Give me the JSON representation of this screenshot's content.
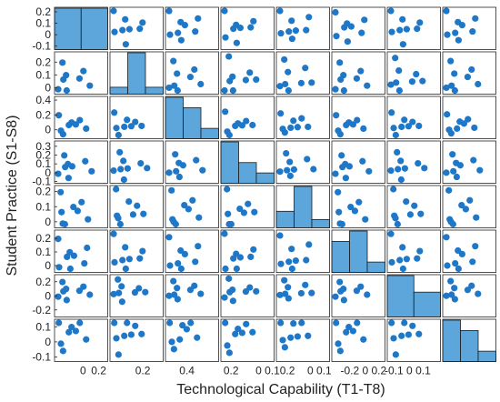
{
  "chart_data": {
    "type": "scatter-matrix",
    "xlabel": "Technological Capability (T1-T8)",
    "ylabel": "Student Practice (S1-S8)",
    "grid": false,
    "colors": {
      "marker": "#1f77c8",
      "bar_fill": "#5ca6dc",
      "bar_edge": "#1b1b1b",
      "frame": "#262626"
    },
    "size": 8,
    "x_range": [
      -0.1,
      0.25
    ],
    "x_ticks": [
      {
        "pos": 0.0,
        "label": "0"
      },
      {
        "pos": 0.1,
        "label": "0.2"
      },
      {
        "pos": 0.2,
        "label": "0.2"
      },
      {
        "pos": 0.3,
        "label": "0.4"
      },
      {
        "pos": 0.4,
        "label": "0.2"
      },
      {
        "pos": 0.5,
        "label": "0 0.10.2"
      },
      {
        "pos": 0.6,
        "label": "0 0.1"
      },
      {
        "pos": 0.7,
        "label": "-0.2 0 0.2"
      },
      {
        "pos": 0.8,
        "label": "-0.1 0 0.1"
      }
    ],
    "row_ticks": [
      {
        "labels": [
          "0.2",
          "0.1",
          "0",
          "-0.1"
        ],
        "values": [
          0.2,
          0.1,
          0.0,
          -0.1
        ],
        "range": [
          -0.13,
          0.24
        ]
      },
      {
        "labels": [
          "0.2",
          "0.1",
          "0"
        ],
        "values": [
          0.2,
          0.1,
          0.0
        ],
        "range": [
          -0.05,
          0.28
        ]
      },
      {
        "labels": [
          "0.4",
          "0.2",
          "0"
        ],
        "values": [
          0.4,
          0.2,
          0.0
        ],
        "range": [
          -0.12,
          0.45
        ]
      },
      {
        "labels": [
          "0.3",
          "0.2",
          "0.1",
          "0",
          "-0.1"
        ],
        "values": [
          0.3,
          0.2,
          0.1,
          0.0,
          -0.1
        ],
        "range": [
          -0.12,
          0.36
        ]
      },
      {
        "labels": [
          "0.2",
          "0.1",
          "0"
        ],
        "values": [
          0.2,
          0.1,
          0.0
        ],
        "range": [
          -0.04,
          0.24
        ]
      },
      {
        "labels": [
          "0.2",
          "0.1",
          "0"
        ],
        "values": [
          0.2,
          0.1,
          0.0
        ],
        "range": [
          -0.05,
          0.26
        ]
      },
      {
        "labels": [
          "0.2",
          "0",
          "-0.2"
        ],
        "values": [
          0.2,
          0.0,
          -0.2
        ],
        "range": [
          -0.3,
          0.3
        ]
      },
      {
        "labels": [
          "0.1",
          "0",
          "-0.1"
        ],
        "values": [
          0.1,
          0.0,
          -0.1
        ],
        "range": [
          -0.13,
          0.15
        ]
      }
    ],
    "histograms": [
      [
        4,
        4
      ],
      [
        1,
        6,
        1
      ],
      [
        4,
        3,
        1
      ],
      [
        4,
        2,
        1
      ],
      [
        2,
        5,
        1
      ],
      [
        3,
        4,
        1
      ],
      [
        5,
        3
      ],
      [
        4,
        3,
        1
      ]
    ],
    "points": [
      [
        -0.06,
        0.22
      ],
      [
        0.0,
        0.11
      ],
      [
        0.09,
        0.13
      ],
      [
        0.04,
        0.06
      ],
      [
        -0.03,
        0.04
      ],
      [
        0.12,
        0.04
      ],
      [
        -0.07,
        0.0
      ],
      [
        -0.02,
        -0.06
      ]
    ]
  }
}
